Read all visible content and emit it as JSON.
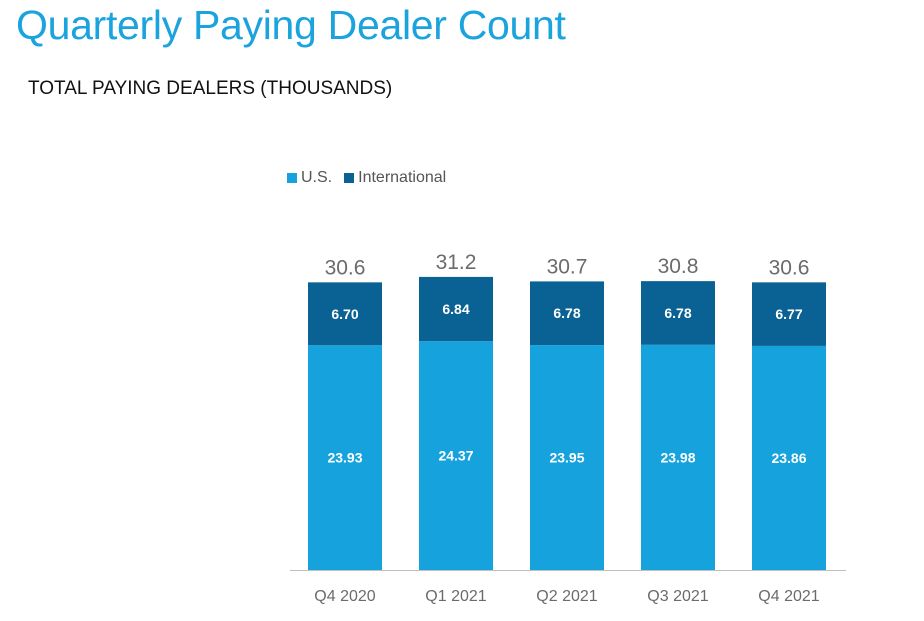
{
  "page": {
    "title": "Quarterly Paying Dealer Count",
    "subtitle": "TOTAL PAYING DEALERS (THOUSANDS)"
  },
  "colors": {
    "title": "#1aa3dd",
    "us": "#16a3dd",
    "international": "#0a6193",
    "total_label": "#6b6b6b",
    "axis": "#bfbfbf",
    "tick_label": "#6b6b6b"
  },
  "chart_data": {
    "type": "bar",
    "stacked": true,
    "title": "Quarterly Paying Dealer Count",
    "subtitle": "TOTAL PAYING DEALERS (THOUSANDS)",
    "categories": [
      "Q4 2020",
      "Q1 2021",
      "Q2 2021",
      "Q3 2021",
      "Q4 2021"
    ],
    "series": [
      {
        "name": "U.S.",
        "values": [
          23.93,
          24.37,
          23.95,
          23.98,
          23.86
        ],
        "labels": [
          "23.93",
          "24.37",
          "23.95",
          "23.98",
          "23.86"
        ]
      },
      {
        "name": "International",
        "values": [
          6.7,
          6.84,
          6.78,
          6.78,
          6.77
        ],
        "labels": [
          "6.70",
          "6.84",
          "6.78",
          "6.78",
          "6.77"
        ]
      }
    ],
    "totals": [
      "30.6",
      "31.2",
      "30.7",
      "30.8",
      "30.6"
    ],
    "ylim": [
      0,
      31.2
    ],
    "grid": false,
    "legend_position": "top-left"
  }
}
